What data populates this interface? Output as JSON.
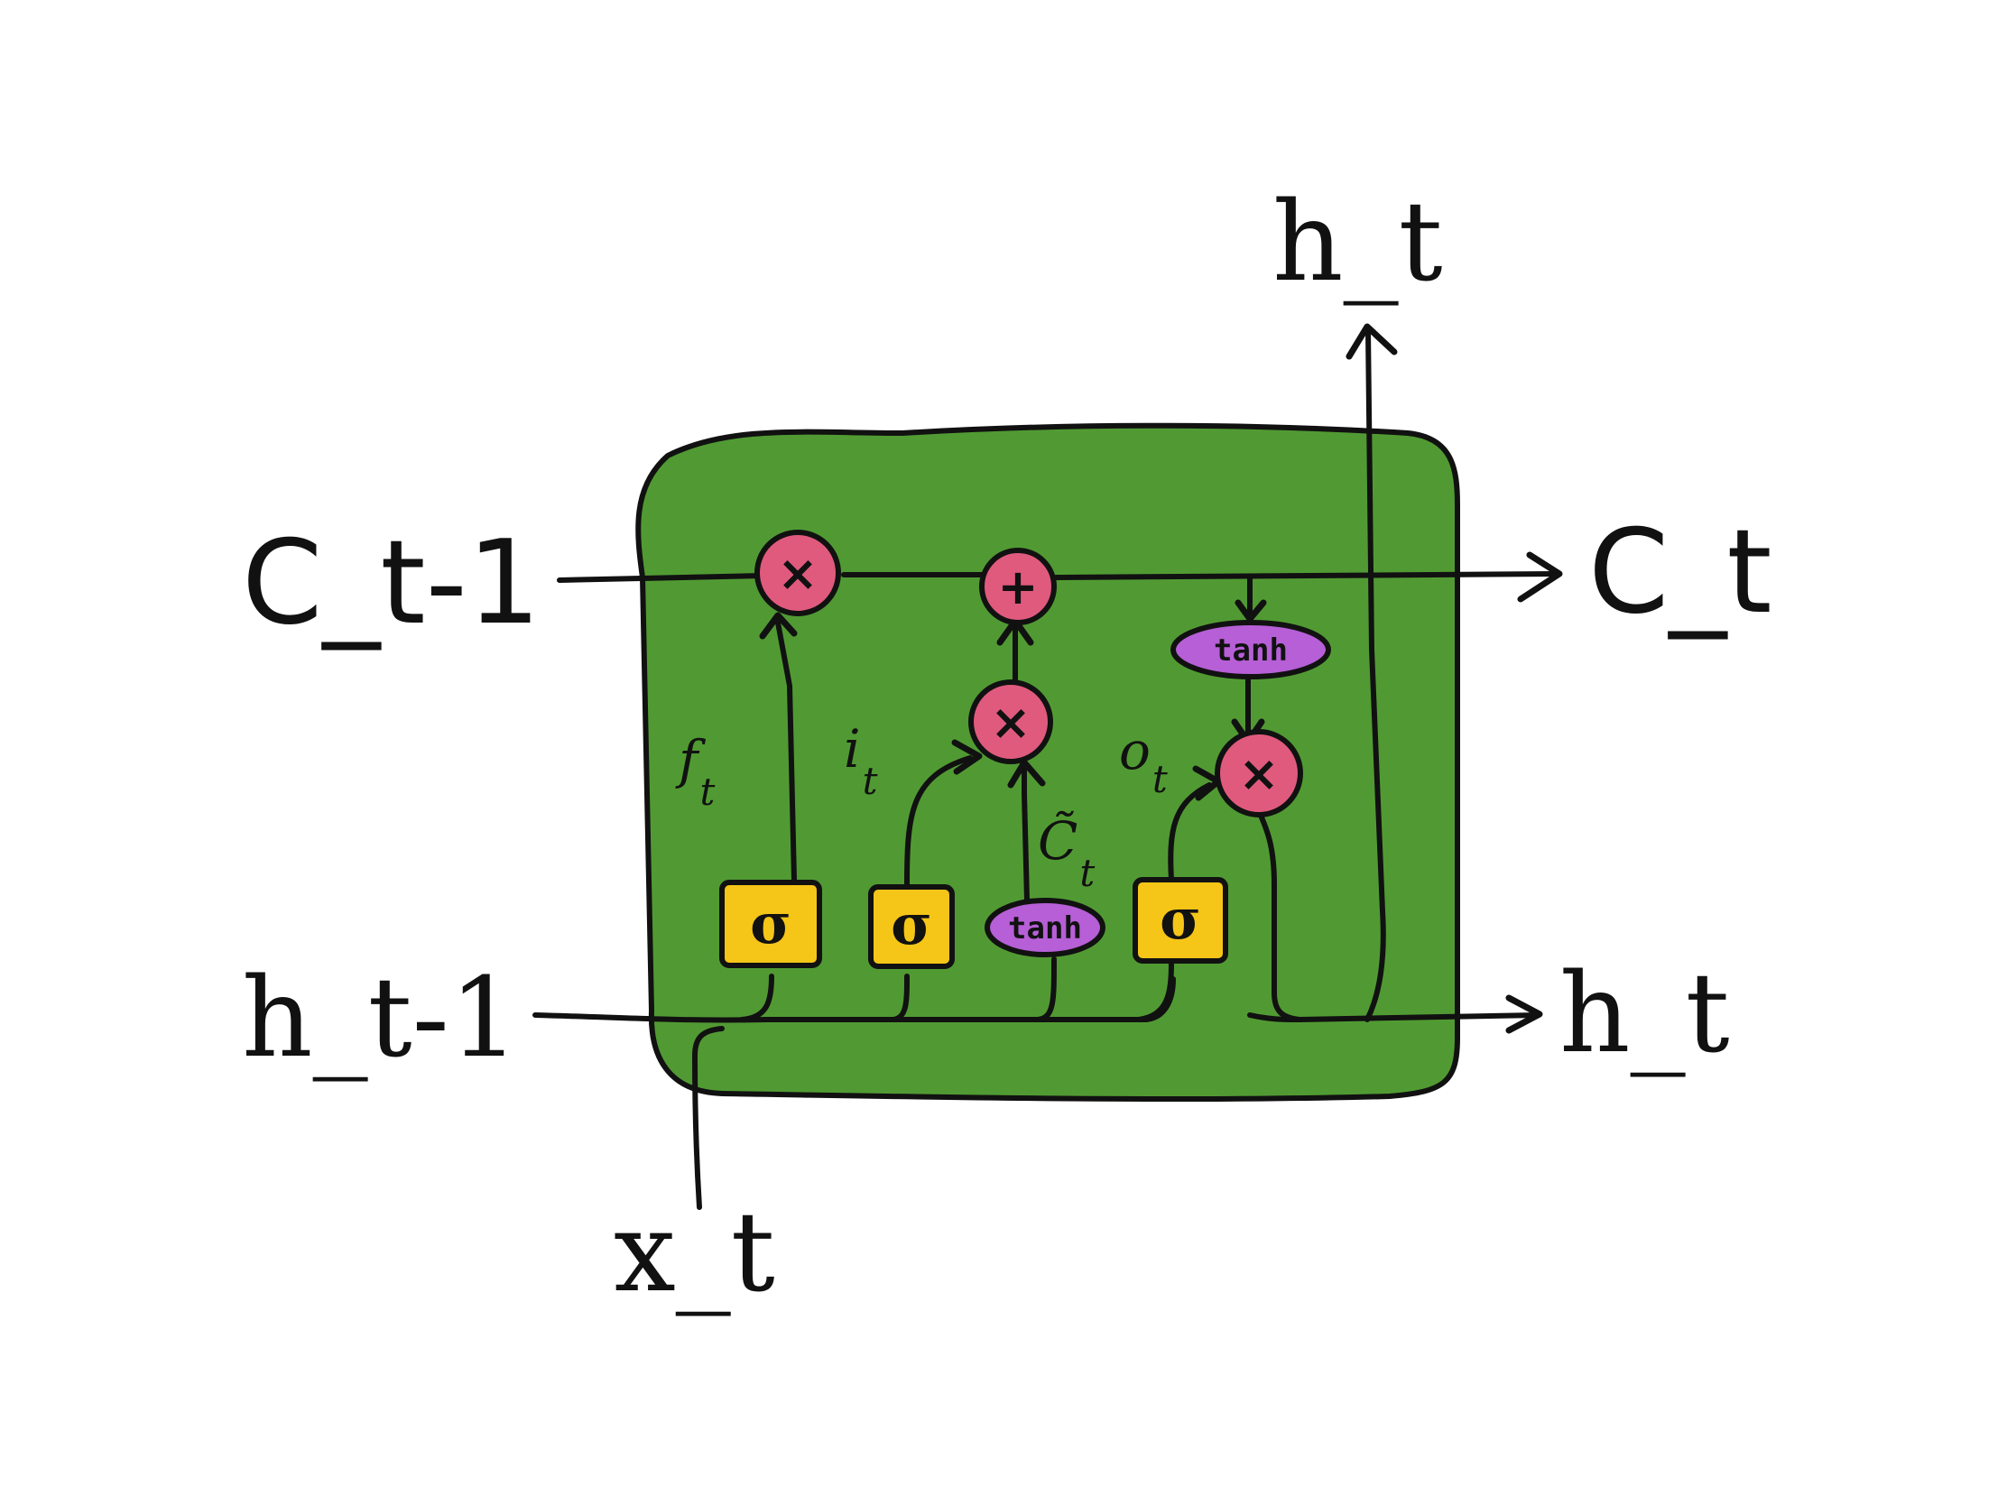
{
  "colors": {
    "cell": "#519a33",
    "sigma_gate": "#f5c518",
    "tanh_gate": "#b65fd6",
    "pointwise_op": "#e05a7e",
    "ink": "#111111"
  },
  "io_labels": {
    "c_prev": "C_t-1",
    "h_prev": "h_t-1",
    "x_input": "x_t",
    "c_out": "C_t",
    "h_out_right": "h_t",
    "h_out_top": "h_t"
  },
  "gates": {
    "forget": {
      "symbol": "σ"
    },
    "input": {
      "symbol": "σ"
    },
    "candidate": {
      "label": "tanh"
    },
    "output": {
      "symbol": "σ"
    }
  },
  "cell_tanh": {
    "label": "tanh"
  },
  "ops": {
    "forget_mult": "×",
    "cell_add": "+",
    "input_mult": "×",
    "output_mult": "×"
  },
  "gate_labels": {
    "f": {
      "base": "f",
      "sub": "t"
    },
    "i": {
      "base": "i",
      "sub": "t"
    },
    "c": {
      "base": "C̃",
      "sub": "t"
    },
    "o": {
      "base": "o",
      "sub": "t"
    }
  }
}
